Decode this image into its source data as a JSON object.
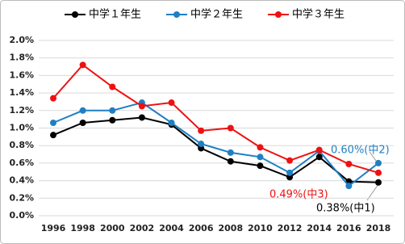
{
  "chart_data": {
    "type": "line",
    "categories": [
      "1996",
      "1998",
      "2000",
      "2002",
      "2004",
      "2006",
      "2008",
      "2010",
      "2012",
      "2014",
      "2016",
      "2018"
    ],
    "series": [
      {
        "name": "中学１年生",
        "color": "#000000",
        "values": [
          0.92,
          1.06,
          1.09,
          1.12,
          1.04,
          0.77,
          0.62,
          0.57,
          0.44,
          0.67,
          0.39,
          0.38
        ]
      },
      {
        "name": "中学２年生",
        "color": "#1f7fc4",
        "values": [
          1.06,
          1.2,
          1.2,
          1.29,
          1.06,
          0.82,
          0.72,
          0.67,
          0.49,
          0.74,
          0.34,
          0.6
        ]
      },
      {
        "name": "中学３年生",
        "color": "#ee1111",
        "values": [
          1.34,
          1.72,
          1.47,
          1.25,
          1.29,
          0.97,
          1.0,
          0.78,
          0.63,
          0.75,
          0.59,
          0.49
        ]
      }
    ],
    "ylim": [
      0,
      2.0
    ],
    "yticks": [
      {
        "value": 0,
        "label": "0.0%"
      },
      {
        "value": 0.2,
        "label": "0.2%"
      },
      {
        "value": 0.4,
        "label": "0.4%"
      },
      {
        "value": 0.6,
        "label": "0.6%"
      },
      {
        "value": 0.8,
        "label": "0.8%"
      },
      {
        "value": 1.0,
        "label": "1.0%"
      },
      {
        "value": 1.2,
        "label": "1.2%"
      },
      {
        "value": 1.4,
        "label": "1.4%"
      },
      {
        "value": 1.6,
        "label": "1.6%"
      },
      {
        "value": 1.8,
        "label": "1.8%"
      },
      {
        "value": 2.0,
        "label": "2.0%"
      }
    ],
    "grid": true,
    "legend": "top",
    "annotations": [
      {
        "text": "0.60%(中2)",
        "color": "#1f7fc4"
      },
      {
        "text": "0.49%(中3)",
        "color": "#ee1111"
      },
      {
        "text": "0.38%(中1)",
        "color": "#000000"
      }
    ]
  }
}
